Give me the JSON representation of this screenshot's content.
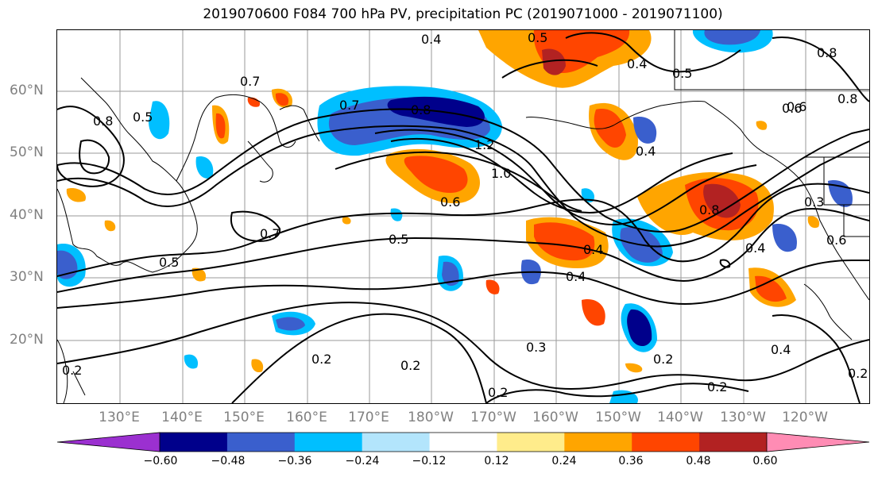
{
  "title": "2019070600 F084 700 hPa PV, precipitation PC (2019071000 - 2019071100)",
  "lat_labels": [
    "60°N",
    "50°N",
    "40°N",
    "30°N",
    "20°N"
  ],
  "lon_labels": [
    "130°E",
    "140°E",
    "150°E",
    "160°E",
    "170°E",
    "180°W",
    "170°W",
    "160°W",
    "150°W",
    "140°W",
    "130°W",
    "120°W"
  ],
  "colorbar": {
    "ticks": [
      "−0.60",
      "−0.48",
      "−0.36",
      "−0.24",
      "−0.12",
      "0.12",
      "0.24",
      "0.36",
      "0.48",
      "0.60"
    ],
    "colors": [
      "#9b30d0",
      "#00008b",
      "#3a5fcd",
      "#00bfff",
      "#b3e5fc",
      "#ffffff",
      "#ffec8b",
      "#ffa500",
      "#ff4500",
      "#b22222",
      "#ff8cb4"
    ]
  },
  "contour_labels": [
    "0.4",
    "0.5",
    "0.4",
    "0.6",
    "0.8",
    "0.7",
    "0.8",
    "0.5",
    "0.7",
    "0.8",
    "1.2",
    "1.0",
    "0.6",
    "0.4",
    "0.3",
    "0.8",
    "0.7",
    "0.5",
    "0.5",
    "0.4",
    "0.4",
    "0.4",
    "0.3",
    "0.2",
    "0.2",
    "0.2",
    "0.2",
    "0.2",
    "0.4",
    "0.2",
    "0.2",
    "0.6",
    "0.6",
    "0.5",
    "0.8"
  ]
}
